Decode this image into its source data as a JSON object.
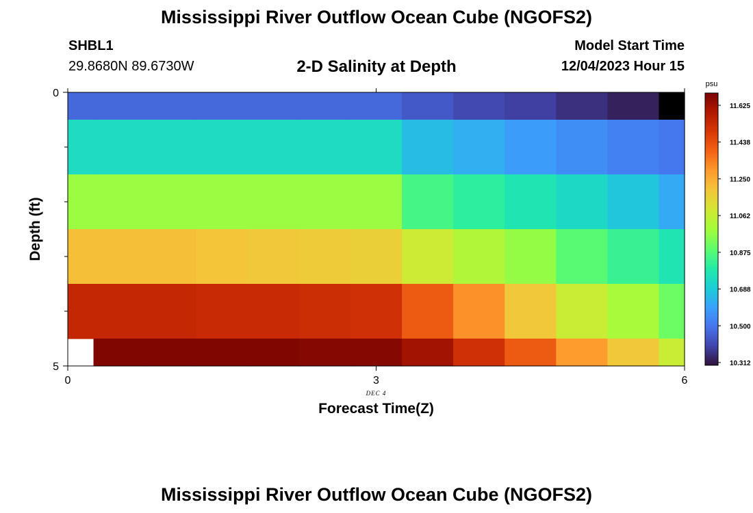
{
  "header": {
    "title": "Mississippi River Outflow Ocean Cube (NGOFS2)",
    "station": "SHBL1",
    "coordinates": "29.8680N  89.6730W",
    "subtitle": "2-D Salinity at Depth",
    "start_label": "Model Start Time",
    "start_value": "12/04/2023 Hour 15"
  },
  "footer": {
    "title": "Mississippi River Outflow Ocean Cube (NGOFS2)"
  },
  "chart_data": {
    "type": "heatmap",
    "xlabel": "Forecast Time(Z)",
    "ylabel": "Depth (ft)",
    "date_label": "DEC 4",
    "x_ticks": [
      0,
      3,
      6
    ],
    "y_ticks": [
      0,
      5
    ],
    "xlim": [
      0,
      6
    ],
    "ylim": [
      0,
      5
    ],
    "x_edges": [
      0,
      0.25,
      0.75,
      1.25,
      1.75,
      2.25,
      2.75,
      3.25,
      3.75,
      4.25,
      4.75,
      5.25,
      5.75,
      6
    ],
    "y_edges": [
      0,
      0.5,
      1.5,
      2.5,
      3.5,
      4.5,
      5
    ],
    "z": [
      [
        10.48,
        10.48,
        10.48,
        10.48,
        10.48,
        10.48,
        10.48,
        10.45,
        10.42,
        10.4,
        10.37,
        10.34,
        10.31
      ],
      [
        10.74,
        10.74,
        10.74,
        10.74,
        10.74,
        10.74,
        10.74,
        10.66,
        10.63,
        10.59,
        10.56,
        10.53,
        10.51
      ],
      [
        10.98,
        10.98,
        10.98,
        10.98,
        10.98,
        10.98,
        10.98,
        10.85,
        10.81,
        10.77,
        10.73,
        10.68,
        10.62
      ],
      [
        11.2,
        11.2,
        11.2,
        11.19,
        11.18,
        11.17,
        11.16,
        11.08,
        11.02,
        10.97,
        10.88,
        10.83,
        10.77
      ],
      [
        11.53,
        11.53,
        11.53,
        11.52,
        11.52,
        11.51,
        11.5,
        11.4,
        11.3,
        11.18,
        11.07,
        11.0,
        10.91
      ],
      [
        null,
        11.66,
        11.66,
        11.66,
        11.66,
        11.65,
        11.65,
        11.6,
        11.5,
        11.4,
        11.28,
        11.18,
        11.07
      ]
    ],
    "colorbar": {
      "units": "psu",
      "ticks": [
        "11.625",
        "11.438",
        "11.250",
        "11.062",
        "10.875",
        "10.688",
        "10.500",
        "10.312"
      ],
      "min": 10.312,
      "max": 11.67
    },
    "colormap": [
      "#30123b",
      "#4145ab",
      "#4675ed",
      "#39a2fc",
      "#1bcfd4",
      "#24eca6",
      "#61fc6c",
      "#a4fc3b",
      "#d1e834",
      "#f3c63a",
      "#fe9b2d",
      "#f36315",
      "#d93806",
      "#b11901",
      "#7a0402"
    ]
  }
}
